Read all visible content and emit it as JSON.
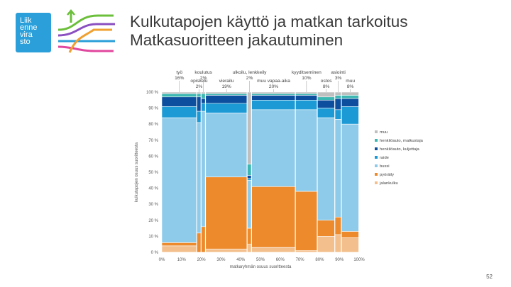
{
  "header": {
    "title_line1": "Kulkutapojen käyttö ja matkan tarkoitus",
    "title_line2": "Matkasuoritteen jakautuminen"
  },
  "logo": {
    "line1": "Liik",
    "line2": "enne",
    "line3": "vira",
    "line4": "sto"
  },
  "page_number": "52",
  "colors": {
    "muu": "#bfbfbf",
    "henkiloauto_matkustaja": "#3db7b1",
    "henkiloauto_kuljettaja": "#0d4f9e",
    "raide": "#1b9ad6",
    "bussi": "#8ecbea",
    "pyoraily": "#ec8a2c",
    "jalankulku": "#f3c08d"
  },
  "chart_data": {
    "type": "marimekko",
    "xlabel": "matkaryhmän osuus suoritteesta",
    "ylabel": "kulkutapojen osuus suoritteesta",
    "x_ticks": [
      "0%",
      "10%",
      "20%",
      "30%",
      "40%",
      "50%",
      "60%",
      "70%",
      "80%",
      "90%",
      "100%"
    ],
    "y_ticks": [
      "0 %",
      "10 %",
      "20 %",
      "30 %",
      "40 %",
      "50 %",
      "60 %",
      "70 %",
      "80 %",
      "90 %",
      "100 %"
    ],
    "series_names": [
      "muu",
      "henkilöauto, matkustaja",
      "henkilöauto, kuljettaja",
      "raide",
      "bussi",
      "pyöräily",
      "jalankulku"
    ],
    "segments": [
      {
        "name": "työ",
        "share": "16%",
        "width": 16,
        "values": [
          1,
          2,
          6,
          7,
          78,
          2,
          4
        ]
      },
      {
        "name": "opiskelu",
        "share": "2%",
        "width": 2,
        "values": [
          1,
          2,
          9,
          7,
          69,
          12,
          0
        ]
      },
      {
        "name": "koulutus",
        "share": "2%",
        "width": 2,
        "values": [
          1,
          3,
          3,
          5,
          72,
          16,
          0
        ]
      },
      {
        "name": "vierailu",
        "share": "19%",
        "width": 19,
        "values": [
          1,
          1,
          5,
          6,
          40,
          45,
          2
        ]
      },
      {
        "name": "ulkoilu, lenkkeily",
        "share": "2%",
        "width": 2,
        "values": [
          45,
          7,
          2,
          1,
          30,
          10,
          5
        ]
      },
      {
        "name": "muu vapaa-aika",
        "share": "20%",
        "width": 20,
        "values": [
          1,
          1,
          3,
          6,
          48,
          38,
          3
        ]
      },
      {
        "name": "kyyditseminen",
        "share": "10%",
        "width": 10,
        "values": [
          1,
          1,
          3,
          6,
          51,
          37,
          1
        ]
      },
      {
        "name": "ostos",
        "share": "8%",
        "width": 8,
        "values": [
          3,
          2,
          5,
          6,
          64,
          10,
          10
        ]
      },
      {
        "name": "asiointi",
        "share": "3%",
        "width": 3,
        "values": [
          2,
          2,
          7,
          6,
          61,
          11,
          11
        ]
      },
      {
        "name": "muu",
        "share": "8%",
        "width": 8,
        "values": [
          2,
          2,
          5,
          11,
          67,
          4,
          9
        ]
      }
    ],
    "legend": [
      "muu",
      "henkilöauto, matkustaja",
      "henkilöauto, kuljettaja",
      "raide",
      "bussi",
      "pyöräily",
      "jalankulku"
    ],
    "top_labels": [
      {
        "name": "työ",
        "share": "16%"
      },
      {
        "name": "opiskelu",
        "share": "2%"
      },
      {
        "name": "koulutus",
        "share": "2%"
      },
      {
        "name": "vierailu",
        "share": "19%"
      },
      {
        "name": "ulkoilu, lenkkeily",
        "share": "2%"
      },
      {
        "name": "muu vapaa-aika",
        "share": "20%"
      },
      {
        "name": "kyyditseminen",
        "share": "10%"
      },
      {
        "name": "ostos",
        "share": "8%"
      },
      {
        "name": "asiointi",
        "share": "3%"
      },
      {
        "name": "muu",
        "share": "8%"
      }
    ]
  }
}
